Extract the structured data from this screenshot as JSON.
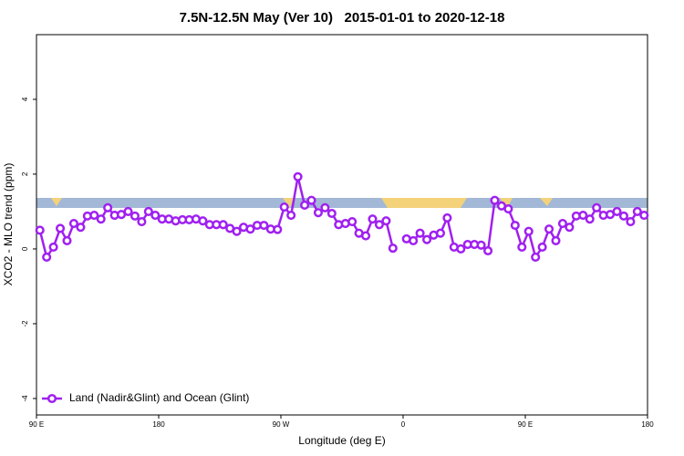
{
  "chart_data": {
    "type": "line",
    "title": "7.5N-12.5N May (Ver 10)   2015-01-01 to 2020-12-18",
    "xlabel": "Longitude (deg E)",
    "ylabel": "XCO2 - MLO trend (ppm)",
    "xlim": [
      90,
      540
    ],
    "xticks": [
      {
        "value": 90,
        "label": "90 E"
      },
      {
        "value": 180,
        "label": "180"
      },
      {
        "value": 270,
        "label": "90 W"
      },
      {
        "value": 360,
        "label": "0"
      },
      {
        "value": 450,
        "label": "90 E"
      },
      {
        "value": 540,
        "label": "180"
      }
    ],
    "ylim": [
      -4.44,
      5.73
    ],
    "yticks": [
      -4,
      -2,
      0,
      2,
      4
    ],
    "legend": "bottom-left",
    "x": [
      92.5,
      97.5,
      102.5,
      107.5,
      112.5,
      117.5,
      122.5,
      127.5,
      132.5,
      137.5,
      142.5,
      147.5,
      152.5,
      157.5,
      162.5,
      167.5,
      172.5,
      177.5,
      182.5,
      187.5,
      192.5,
      197.5,
      202.5,
      207.5,
      212.5,
      217.5,
      222.5,
      227.5,
      232.5,
      237.5,
      242.5,
      247.5,
      252.5,
      257.5,
      262.5,
      267.5,
      272.5,
      277.5,
      282.5,
      287.5,
      292.5,
      297.5,
      302.5,
      307.5,
      312.5,
      317.5,
      322.5,
      327.5,
      332.5,
      337.5,
      342.5,
      347.5,
      352.5,
      357.5,
      362.5,
      367.5,
      372.5,
      377.5,
      382.5,
      387.5,
      392.5,
      397.5,
      402.5,
      407.5,
      412.5,
      417.5,
      422.5,
      427.5,
      432.5,
      437.5,
      442.5,
      447.5,
      452.5,
      457.5,
      462.5,
      467.5,
      472.5,
      477.5,
      482.5,
      487.5,
      492.5,
      497.5,
      502.5,
      507.5,
      512.5,
      517.5,
      522.5,
      527.5,
      532.5,
      537.5
    ],
    "series": [
      {
        "name": "Land (Nadir&Glint) and Ocean (Glint)",
        "color": "#a020f0",
        "values": [
          0.5,
          -0.22,
          0.05,
          0.55,
          0.22,
          0.68,
          0.58,
          0.88,
          0.9,
          0.8,
          1.1,
          0.9,
          0.92,
          1.0,
          0.88,
          0.73,
          1.0,
          0.9,
          0.8,
          0.8,
          0.75,
          0.78,
          0.78,
          0.8,
          0.75,
          0.65,
          0.65,
          0.65,
          0.55,
          0.47,
          0.58,
          0.53,
          0.63,
          0.63,
          0.53,
          0.52,
          1.12,
          0.9,
          1.93,
          1.17,
          1.3,
          0.97,
          1.1,
          0.95,
          0.65,
          0.68,
          0.73,
          0.42,
          0.35,
          0.8,
          0.65,
          0.75,
          0.02,
          null,
          0.27,
          0.22,
          0.42,
          0.25,
          0.37,
          0.42,
          0.83,
          0.05,
          0.0,
          0.12,
          0.12,
          0.1,
          -0.05,
          1.3,
          1.15,
          1.07,
          0.63,
          0.05,
          0.47,
          -0.22,
          0.05,
          0.53,
          0.22,
          0.68,
          0.58,
          0.88,
          0.9,
          0.8,
          1.1,
          0.9,
          0.92,
          1.0,
          0.88,
          0.73,
          1.0,
          0.9
        ]
      }
    ]
  }
}
